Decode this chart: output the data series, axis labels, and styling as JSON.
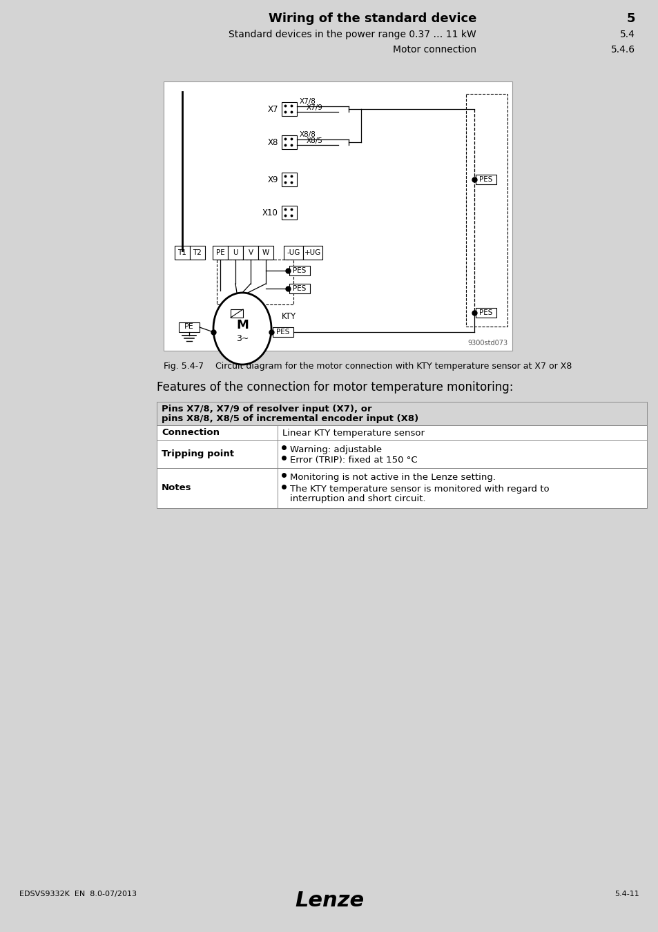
{
  "page_bg": "#d4d4d4",
  "content_bg": "#ffffff",
  "title_bold": "Wiring of the standard device",
  "title_number": "5",
  "subtitle1": "Standard devices in the power range 0.37 … 11 kW",
  "subtitle1_num": "5.4",
  "subtitle2": "Motor connection",
  "subtitle2_num": "5.4.6",
  "footer_left": "EDSVS9332K  EN  8.0-07/2013",
  "footer_center": "Lenze",
  "footer_right": "5.4-11",
  "fig_caption_a": "Fig. 5.4-7",
  "fig_caption_b": "Circuit diagram for the motor connection with KTY temperature sensor at X7 or X8",
  "diagram_ref": "9300std073",
  "table_header_line1": "Pins X7/8, X7/9 of resolver input (X7), or",
  "table_header_line2": "pins X8/8, X8/5 of incremental encoder input (X8)",
  "features_title": "Features of the connection for motor temperature monitoring:",
  "row1_label": "Connection",
  "row1_val": "Linear KTY temperature sensor",
  "row2_label": "Tripping point",
  "row2_val1": "Warning: adjustable",
  "row2_val2": "Error (TRIP): fixed at 150 °C",
  "row3_label": "Notes",
  "row3_val1": "Monitoring is not active in the Lenze setting.",
  "row3_val2": "The KTY temperature sensor is monitored with regard to",
  "row3_val3": "interruption and short circuit."
}
